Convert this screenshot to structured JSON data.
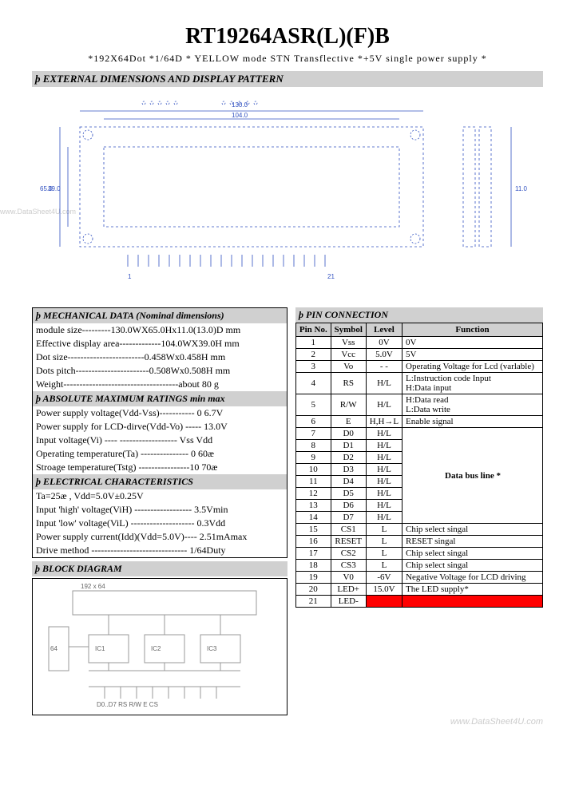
{
  "title": "RT19264ASR(L)(F)B",
  "subtitle": "*192X64Dot    *1/64D   *  YELLOW  mode  STN   Transflective   *+5V   single  power   supply *",
  "sec_external": "þ  EXTERNAL   DIMENSIONS   AND  DISPLAY   PATTERN",
  "sec_mechanical": "þ  MECHANICAL  DATA  (Nominal dimensions)",
  "mech_lines": [
    "module  size---------130.0WX65.0Hx11.0(13.0)D mm",
    "Effective  display area-------------104.0WX39.0H  mm",
    "Dot  size------------------------0.458Wx0.458H  mm",
    "Dots  pitch-----------------------0.508Wx0.508H  mm",
    "Weight------------------------------------about 80   g"
  ],
  "sec_absmax": "þ  ABSOLUTE MAXIMUM RATINGS    min    max",
  "absmax_lines": [
    "Power  supply voltage(Vdd-Vss)-----------   0    6.7V",
    "Power supply for LCD-dirve(Vdd-Vo) -----       13.0V",
    "Input   voltage(Vi) ---- ------------------ Vss    Vdd",
    "Operating   temperature(Ta) ---------------  0    60æ",
    "Stroage   temperature(Tstg) ----------------10   70æ"
  ],
  "sec_elec": "þ  ELECTRICAL   CHARACTERISTICS",
  "elec_lines": [
    "Ta=25æ ,   Vdd=5.0V±0.25V",
    "Input  'high'  voltage(ViH) ------------------   3.5Vmin",
    "Input   'low'   voltage(ViL) --------------------  0.3Vdd",
    "Power supply current(Idd)(Vdd=5.0V)---- 2.51mAmax",
    "Drive method ------------------------------  1/64Duty"
  ],
  "sec_block": "þ  BLOCK   DIAGRAM",
  "sec_pin": "þ   PIN  CONNECTION",
  "pin_headers": [
    "Pin No.",
    "Symbol",
    "Level",
    "Function"
  ],
  "pins": [
    {
      "no": "1",
      "sym": "Vss",
      "lvl": "0V",
      "fn": "0V"
    },
    {
      "no": "2",
      "sym": "Vcc",
      "lvl": "5.0V",
      "fn": "5V"
    },
    {
      "no": "3",
      "sym": "Vo",
      "lvl": "- -",
      "fn": "Operating Voltage for Lcd (varlable)"
    },
    {
      "no": "4",
      "sym": "RS",
      "lvl": "H/L",
      "fn": "L:Instruction code Input\nH:Data  input"
    },
    {
      "no": "5",
      "sym": "R/W",
      "lvl": "H/L",
      "fn": "H:Data  read\nL:Data  write"
    },
    {
      "no": "6",
      "sym": "E",
      "lvl": "H,H→L",
      "fn": "Enable signal"
    },
    {
      "no": "7",
      "sym": "D0",
      "lvl": "H/L",
      "fn": ""
    },
    {
      "no": "8",
      "sym": "D1",
      "lvl": "H/L",
      "fn": ""
    },
    {
      "no": "9",
      "sym": "D2",
      "lvl": "H/L",
      "fn": ""
    },
    {
      "no": "10",
      "sym": "D3",
      "lvl": "H/L",
      "fn": ""
    },
    {
      "no": "11",
      "sym": "D4",
      "lvl": "H/L",
      "fn": ""
    },
    {
      "no": "12",
      "sym": "D5",
      "lvl": "H/L",
      "fn": ""
    },
    {
      "no": "13",
      "sym": "D6",
      "lvl": "H/L",
      "fn": ""
    },
    {
      "no": "14",
      "sym": "D7",
      "lvl": "H/L",
      "fn": ""
    },
    {
      "no": "15",
      "sym": "CS1",
      "lvl": "L",
      "fn": "Chip  select   singal"
    },
    {
      "no": "16",
      "sym": "RESET",
      "lvl": "L",
      "fn": "RESET  singal"
    },
    {
      "no": "17",
      "sym": "CS2",
      "lvl": "L",
      "fn": "Chip  select   singal"
    },
    {
      "no": "18",
      "sym": "CS3",
      "lvl": "L",
      "fn": "Chip  select   singal"
    },
    {
      "no": "19",
      "sym": "V0",
      "lvl": "-6V",
      "fn": "Negative Voltage for LCD  driving"
    },
    {
      "no": "20",
      "sym": "LED+",
      "lvl": "15.0V",
      "fn": "The LED  supply*"
    },
    {
      "no": "21",
      "sym": "LED-",
      "lvl": "",
      "fn": "",
      "red": true
    }
  ],
  "data_bus_label": "Data  bus  line *",
  "watermark_left": "www.DataSheet4U.com",
  "watermark_bottom": "www.DataSheet4U.com",
  "drawing": {
    "stroke": "#3050c0",
    "dim_stroke": "#2040b0"
  },
  "block": {
    "stroke": "#999"
  }
}
